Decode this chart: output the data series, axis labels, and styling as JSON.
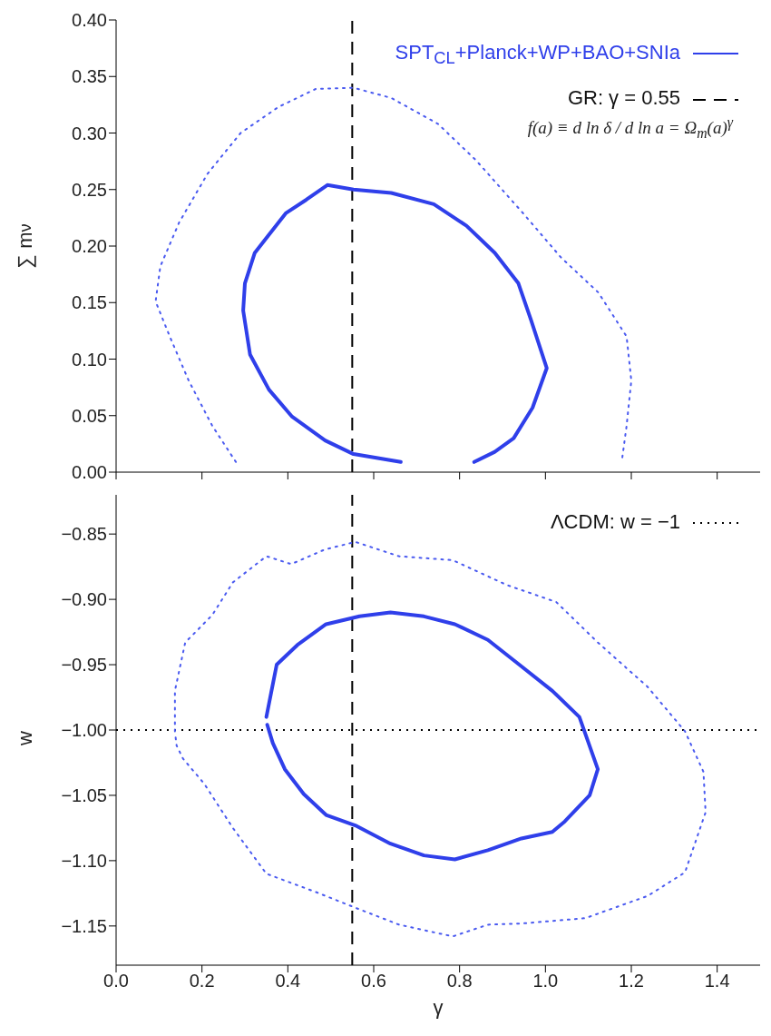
{
  "chart_data": [
    {
      "type": "line",
      "ylabel": "∑ m$_{ν}$",
      "xlim": [
        0,
        1.5
      ],
      "ylim": [
        0,
        0.4
      ],
      "tick_labels": "y",
      "grid": false,
      "legend": "top right",
      "xticks": [
        0,
        0.2,
        0.4,
        0.6,
        0.8,
        1.0,
        1.2,
        1.4
      ],
      "yticks": [
        {
          "value": 0,
          "label": "0.00"
        },
        {
          "value": 0.05,
          "label": "0.05"
        },
        {
          "value": 0.1,
          "label": "0.10"
        },
        {
          "value": 0.15,
          "label": "0.15"
        },
        {
          "value": 0.2,
          "label": "0.20"
        },
        {
          "value": 0.25,
          "label": "0.25"
        },
        {
          "value": 0.3,
          "label": "0.30"
        },
        {
          "value": 0.35,
          "label": "0.35"
        },
        {
          "value": 0.4,
          "label": "0.40"
        }
      ],
      "series": [
        {
          "name": "SPT$_{CL}$+Planck+WP+BAO+SNIa",
          "color": "#2f3fea",
          "line_style": "solid",
          "x": [
            0.663,
            0.553,
            0.487,
            0.41,
            0.356,
            0.312,
            0.296,
            0.3,
            0.323,
            0.356,
            0.395,
            0.443,
            0.492,
            0.553,
            0.641,
            0.74,
            0.816,
            0.882,
            0.937,
            0.966,
            1.003,
            0.97,
            0.926,
            0.882,
            0.834
          ],
          "values": [
            0.009,
            0.016,
            0.028,
            0.049,
            0.073,
            0.104,
            0.143,
            0.167,
            0.194,
            0.21,
            0.229,
            0.241,
            0.254,
            0.25,
            0.247,
            0.237,
            0.218,
            0.194,
            0.167,
            0.135,
            0.092,
            0.057,
            0.03,
            0.018,
            0.009
          ]
        },
        {
          "color": "#4a5af0",
          "line_style": "dotted",
          "x": [
            0.279,
            0.224,
            0.169,
            0.125,
            0.092,
            0.103,
            0.147,
            0.213,
            0.29,
            0.378,
            0.465,
            0.553,
            0.641,
            0.75,
            0.838,
            0.948,
            1.036,
            1.123,
            1.189,
            1.2,
            1.189,
            1.178
          ],
          "values": [
            0.009,
            0.041,
            0.081,
            0.12,
            0.151,
            0.182,
            0.221,
            0.264,
            0.3,
            0.323,
            0.339,
            0.34,
            0.331,
            0.308,
            0.276,
            0.229,
            0.19,
            0.159,
            0.12,
            0.081,
            0.041,
            0.01
          ]
        }
      ],
      "ref_lines": [
        {
          "axis": "x",
          "value": 0.55,
          "label": "GR: γ = 0.55",
          "line_style": "dashed",
          "color": "#000000"
        }
      ],
      "annotations": [
        "f(a) ≡ d ln δ / d ln a = Ω$_{m}$(a)$^{γ}$"
      ]
    },
    {
      "type": "line",
      "xlabel": "γ",
      "ylabel": "w",
      "xlim": [
        0,
        1.5
      ],
      "ylim": [
        -1.18,
        -0.82
      ],
      "grid": false,
      "legend": "top right",
      "xticks": [
        {
          "value": 0,
          "label": "0.0"
        },
        {
          "value": 0.2,
          "label": "0.2"
        },
        {
          "value": 0.4,
          "label": "0.4"
        },
        {
          "value": 0.6,
          "label": "0.6"
        },
        {
          "value": 0.8,
          "label": "0.8"
        },
        {
          "value": 1.0,
          "label": "1.0"
        },
        {
          "value": 1.2,
          "label": "1.2"
        },
        {
          "value": 1.4,
          "label": "1.4"
        }
      ],
      "yticks": [
        {
          "value": -1.15,
          "label": "−1.15"
        },
        {
          "value": -1.1,
          "label": "−1.10"
        },
        {
          "value": -1.05,
          "label": "−1.05"
        },
        {
          "value": -1.0,
          "label": "−1.00"
        },
        {
          "value": -0.95,
          "label": "−0.95"
        },
        {
          "value": -0.9,
          "label": "−0.90"
        },
        {
          "value": -0.85,
          "label": "−0.85"
        }
      ],
      "series": [
        {
          "color": "#2f3fea",
          "line_style": "solid",
          "x": [
            0.35,
            0.374,
            0.422,
            0.489,
            0.567,
            0.639,
            0.717,
            0.789,
            0.866,
            0.939,
            1.016,
            1.079,
            1.122,
            1.103,
            1.045,
            1.016,
            0.944,
            0.866,
            0.789,
            0.717,
            0.639,
            0.557,
            0.489,
            0.437,
            0.393,
            0.365,
            0.352
          ],
          "values": [
            -0.99,
            -0.95,
            -0.935,
            -0.919,
            -0.913,
            -0.91,
            -0.913,
            -0.919,
            -0.931,
            -0.95,
            -0.97,
            -0.99,
            -1.03,
            -1.05,
            -1.07,
            -1.078,
            -1.083,
            -1.092,
            -1.099,
            -1.096,
            -1.087,
            -1.073,
            -1.065,
            -1.049,
            -1.03,
            -1.01,
            -0.996
          ]
        },
        {
          "color": "#4a5af0",
          "line_style": "dotted",
          "x": [
            0.137,
            0.137,
            0.161,
            0.224,
            0.272,
            0.35,
            0.408,
            0.485,
            0.557,
            0.659,
            0.784,
            0.91,
            1.025,
            1.122,
            1.238,
            1.325,
            1.368,
            1.373,
            1.325,
            1.238,
            1.093,
            0.948,
            0.866,
            0.784,
            0.659,
            0.557,
            0.465,
            0.35,
            0.272,
            0.205,
            0.156,
            0.141,
            0.138
          ],
          "values": [
            -1.001,
            -0.97,
            -0.933,
            -0.912,
            -0.887,
            -0.867,
            -0.873,
            -0.862,
            -0.856,
            -0.867,
            -0.87,
            -0.889,
            -0.902,
            -0.933,
            -0.967,
            -1.001,
            -1.032,
            -1.063,
            -1.109,
            -1.127,
            -1.144,
            -1.148,
            -1.149,
            -1.158,
            -1.149,
            -1.136,
            -1.124,
            -1.11,
            -1.075,
            -1.041,
            -1.022,
            -1.012,
            -1.004
          ]
        }
      ],
      "ref_lines": [
        {
          "axis": "x",
          "value": 0.55,
          "label": null,
          "line_style": "dashed",
          "color": "#000000"
        },
        {
          "axis": "y",
          "value": -1.0,
          "label": "ΛCDM: w = −1",
          "line_style": "dotted",
          "color": "#000000"
        }
      ]
    }
  ]
}
